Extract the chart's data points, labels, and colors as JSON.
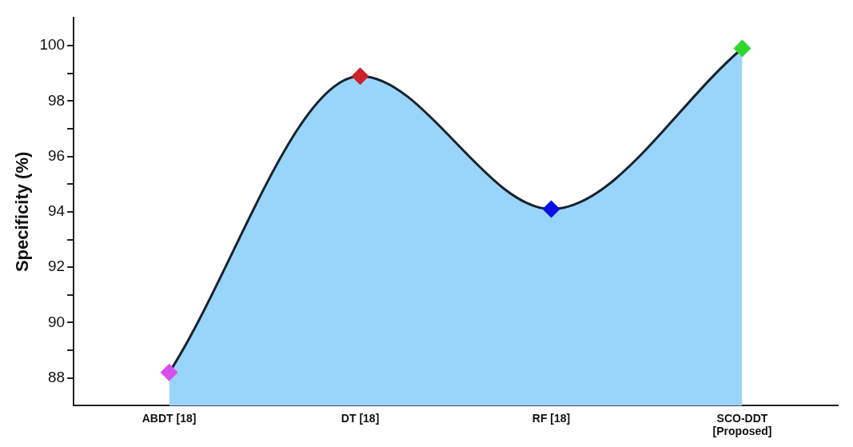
{
  "chart_data": {
    "type": "area",
    "ylabel": "Specificity (%)",
    "categories": [
      "ABDT [18]",
      "DT [18]",
      "RF [18]",
      "SCO-DDT [Proposed]"
    ],
    "series": [
      {
        "color": "#99d5fb",
        "colors": [
          "#d84ff0",
          "#cc2229",
          "#0a10e6",
          "#2ed62e"
        ],
        "values": [
          88.2,
          98.9,
          94.1,
          99.9
        ]
      }
    ],
    "ylim": [
      87,
      101
    ],
    "yticks": [
      88,
      {
        "value": 89,
        "label": null
      },
      90,
      {
        "value": 91,
        "label": null
      },
      92,
      {
        "value": 93,
        "label": null
      },
      94,
      {
        "value": 95,
        "label": null
      },
      96,
      {
        "value": 97,
        "label": null
      },
      98,
      {
        "value": 99,
        "label": null
      },
      100
    ],
    "marker": "diamond",
    "grid": false,
    "legend": false
  }
}
